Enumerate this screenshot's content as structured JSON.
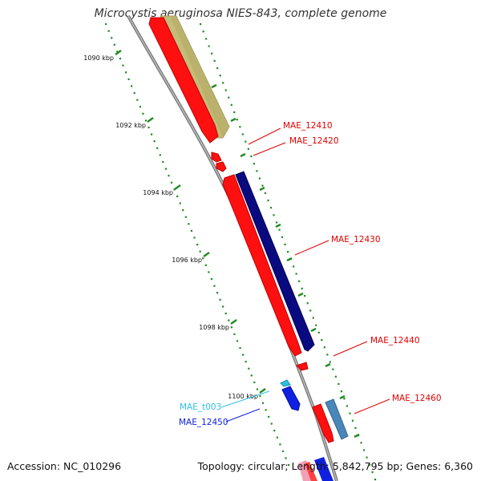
{
  "title": "Microcystis aeruginosa NIES-843, complete genome",
  "footer": {
    "accession": "Accession: NC_010296",
    "summary": "Topology: circular; Length: 5,842,795 bp; Genes: 6,360"
  },
  "colors": {
    "forward_gene": "#ff0000",
    "reverse_gene": "#000080",
    "rrna_gene": "#c8c080",
    "steel_gene": "#4a86b8",
    "trna_gene": "#30c0e0",
    "backbone": "#888888",
    "tick": "#228b22"
  },
  "scale": {
    "ticks": [
      {
        "label": "1090 kbp"
      },
      {
        "label": "1092 kbp"
      },
      {
        "label": "1094 kbp"
      },
      {
        "label": "1096 kbp"
      },
      {
        "label": "1098 kbp"
      },
      {
        "label": "1100 kbp"
      }
    ]
  },
  "genes": [
    {
      "name": "MAE_12410",
      "color": "#ff0000"
    },
    {
      "name": "MAE_12420",
      "color": "#ff0000"
    },
    {
      "name": "MAE_12430",
      "color": "#ff0000"
    },
    {
      "name": "MAE_12440",
      "color": "#ff0000"
    },
    {
      "name": "MAE_12460",
      "color": "#ff0000"
    },
    {
      "name": "MAE_t003",
      "color": "#30c0e0"
    },
    {
      "name": "MAE_12450",
      "color": "#0000cc"
    }
  ]
}
